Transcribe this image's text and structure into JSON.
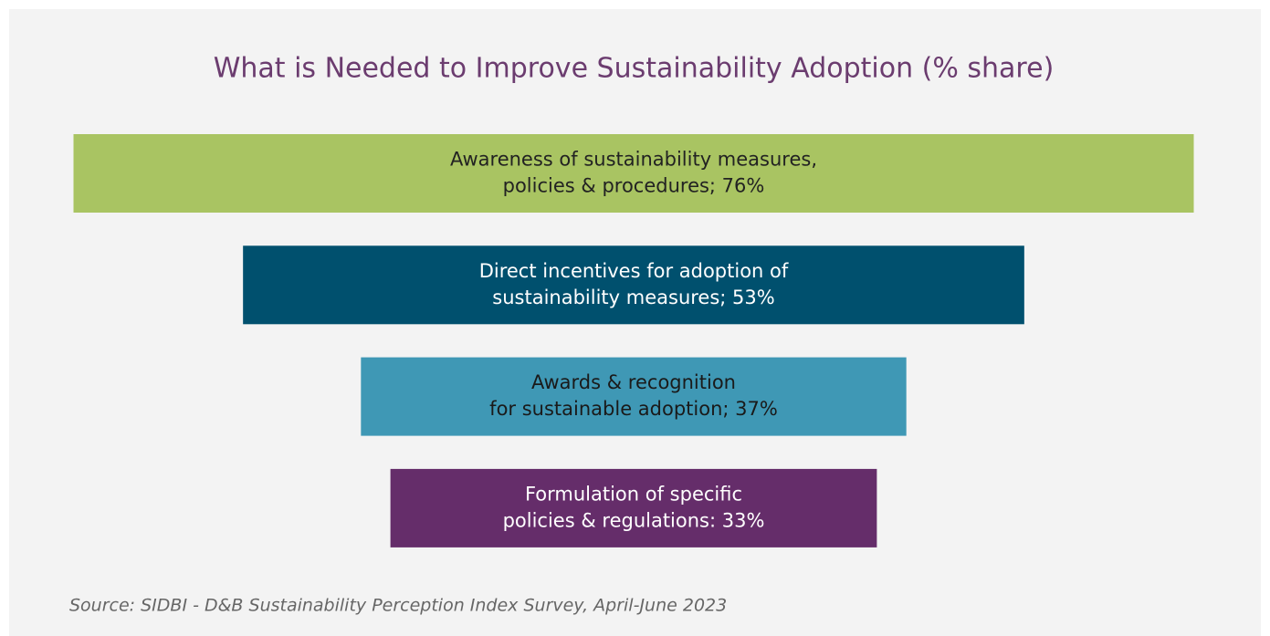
{
  "chart_data": {
    "type": "funnel",
    "title": "What is Needed to Improve Sustainability Adoption (% share)",
    "categories": [
      [
        "Awareness of sustainability measures,",
        "policies & procedures; 76%"
      ],
      [
        "Direct incentives for adoption of",
        "sustainability measures; 53%"
      ],
      [
        "Awards & recognition",
        "for sustainable adoption; 37%"
      ],
      [
        "Formulation of specific",
        "policies & regulations: 33%"
      ]
    ],
    "values": [
      76,
      53,
      37,
      33
    ],
    "colors": [
      "#a9c462",
      "#00506e",
      "#3f98b5",
      "#652d6a"
    ],
    "label_colors": [
      "#222222",
      "#ffffff",
      "#1a1a1a",
      "#ffffff"
    ],
    "source": "Source: SIDBI - D&B Sustainability Perception Index Survey, April-June 2023"
  }
}
